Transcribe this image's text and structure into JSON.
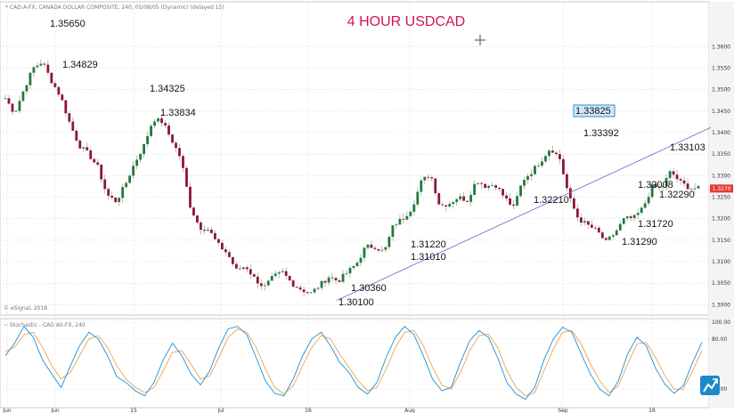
{
  "chart_data": {
    "type": "candlestick",
    "title": "4 HOUR USDCAD",
    "header": "* CAD:A-FX, CANADA DOLLAR COMPOSITE, 240, 05/08/05 (Dynamic) (delayed 15)",
    "copyright": "© eSignal, 2018",
    "indicator_header": "~ Stochastic - CAD A0-FX, 240",
    "ylim": [
      1.298,
      1.37
    ],
    "y_ticks": [
      "1.3600",
      "1.3550",
      "1.3500",
      "1.3450",
      "1.3400",
      "1.3350",
      "1.3300",
      "1.3250",
      "1.3200",
      "1.3150",
      "1.3100",
      "1.3050",
      "1.3000"
    ],
    "x_ticks": [
      "Jun",
      "Jun",
      "15",
      "Jul",
      "16",
      "Aug",
      "Sep",
      "16"
    ],
    "price_tag": "1.3270",
    "last_price": 1.327,
    "annotations": [
      {
        "label": "1.35650",
        "value": 1.3565
      },
      {
        "label": "1.34829",
        "value": 1.3483
      },
      {
        "label": "1.34325",
        "value": 1.3433
      },
      {
        "label": "1.33834",
        "value": 1.3383
      },
      {
        "label": "1.30360",
        "value": 1.3036
      },
      {
        "label": "1.30100",
        "value": 1.301
      },
      {
        "label": "1.31220",
        "value": 1.3122
      },
      {
        "label": "1.31010",
        "value": 1.3101
      },
      {
        "label": "1.33825",
        "value": 1.3383,
        "boxed": true
      },
      {
        "label": "1.33392",
        "value": 1.3339
      },
      {
        "label": "1.32210",
        "value": 1.3221
      },
      {
        "label": "1.32008",
        "value": 1.3201
      },
      {
        "label": "1.31720",
        "value": 1.3172
      },
      {
        "label": "1.31290",
        "value": 1.3129
      },
      {
        "label": "1.33103",
        "value": 1.331
      },
      {
        "label": "1.32290",
        "value": 1.3229
      }
    ],
    "trendline": {
      "from": 1.301,
      "to": 1.3412
    },
    "price_path": [
      1.348,
      1.3445,
      1.35,
      1.355,
      1.3565,
      1.352,
      1.3483,
      1.342,
      1.337,
      1.335,
      1.332,
      1.3255,
      1.324,
      1.328,
      1.333,
      1.337,
      1.3432,
      1.3425,
      1.3383,
      1.334,
      1.323,
      1.318,
      1.3175,
      1.314,
      1.312,
      1.308,
      1.309,
      1.306,
      1.304,
      1.3065,
      1.3075,
      1.305,
      1.3036,
      1.3025,
      1.3045,
      1.3065,
      1.3055,
      1.3075,
      1.3095,
      1.3135,
      1.3135,
      1.3122,
      1.3185,
      1.32,
      1.3225,
      1.3285,
      1.3305,
      1.323,
      1.3235,
      1.325,
      1.3243,
      1.329,
      1.3275,
      1.328,
      1.325,
      1.3225,
      1.329,
      1.331,
      1.3336,
      1.3365,
      1.3339,
      1.325,
      1.32,
      1.3185,
      1.3172,
      1.3145,
      1.3168,
      1.32,
      1.3201,
      1.3225,
      1.3275,
      1.327,
      1.331,
      1.3285,
      1.3272,
      1.327
    ],
    "stochastic": {
      "y_ticks": [
        "100.00",
        "80.00",
        "20.00"
      ],
      "levels": [
        80,
        20
      ],
      "k": [
        60,
        75,
        95,
        82,
        55,
        38,
        22,
        48,
        72,
        88,
        80,
        60,
        35,
        28,
        18,
        12,
        28,
        55,
        75,
        60,
        38,
        25,
        42,
        70,
        92,
        95,
        85,
        58,
        30,
        15,
        12,
        32,
        60,
        80,
        88,
        72,
        52,
        40,
        22,
        14,
        28,
        58,
        82,
        95,
        85,
        60,
        32,
        18,
        22,
        52,
        78,
        90,
        82,
        58,
        28,
        14,
        8,
        22,
        55,
        80,
        94,
        88,
        62,
        38,
        20,
        12,
        30,
        62,
        82,
        72,
        45,
        26,
        15,
        24,
        52,
        76
      ],
      "d": [
        65,
        70,
        85,
        88,
        70,
        48,
        32,
        40,
        60,
        80,
        84,
        70,
        48,
        32,
        22,
        16,
        22,
        42,
        64,
        66,
        50,
        32,
        36,
        58,
        82,
        92,
        88,
        70,
        44,
        22,
        14,
        24,
        48,
        70,
        84,
        80,
        62,
        46,
        30,
        18,
        22,
        44,
        70,
        88,
        90,
        72,
        46,
        25,
        20,
        40,
        66,
        84,
        86,
        70,
        42,
        22,
        12,
        16,
        42,
        68,
        88,
        90,
        74,
        50,
        30,
        16,
        24,
        50,
        74,
        76,
        58,
        36,
        20,
        20,
        42,
        66
      ]
    }
  },
  "cursor_icon": "crosshair-icon",
  "logo_icon": "esignal-logo-icon"
}
